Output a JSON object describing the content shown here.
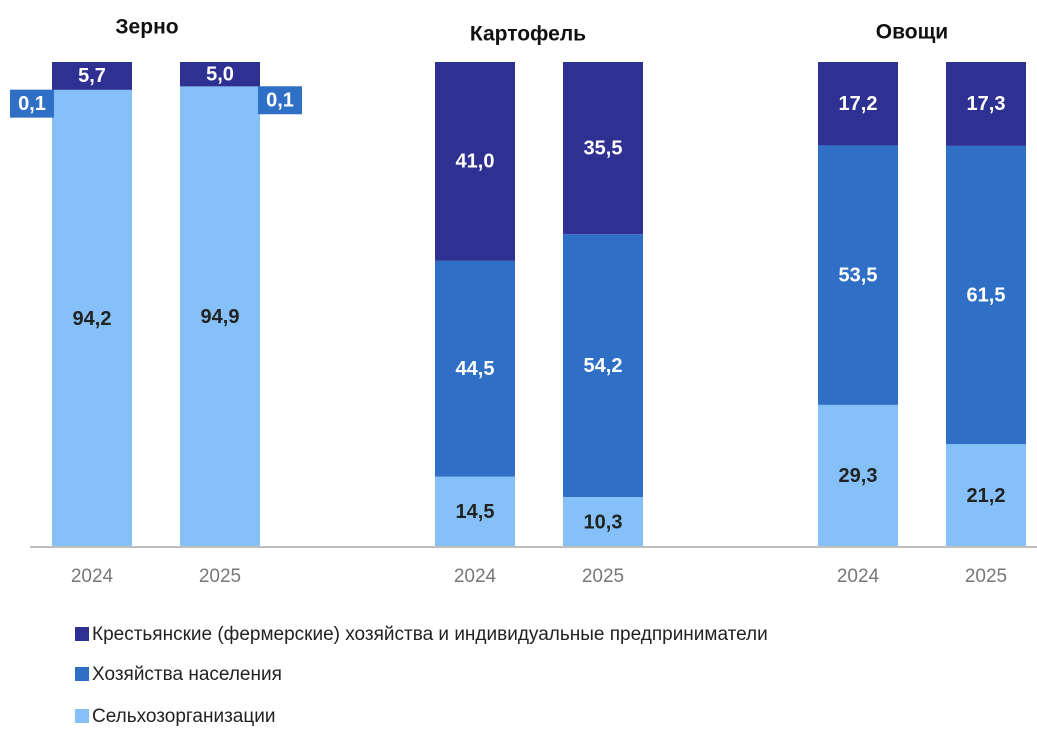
{
  "chart_data": {
    "type": "stacked_bar",
    "groups": [
      "Зерно",
      "Картофель",
      "Овощи"
    ],
    "categories": [
      "2024",
      "2025",
      "2024",
      "2025",
      "2024",
      "2025"
    ],
    "ylim": [
      0,
      100
    ],
    "series": [
      {
        "name": "Сельхозорганизации",
        "color": "#85c1f8",
        "values": [
          94.2,
          94.9,
          14.5,
          10.3,
          29.3,
          21.2
        ],
        "value_labels": [
          "94,2",
          "94,9",
          "14,5",
          "10,3",
          "29,3",
          "21,2"
        ]
      },
      {
        "name": "Хозяйства населения",
        "color": "#2f70c6",
        "values": [
          0.1,
          0.1,
          44.5,
          54.2,
          53.5,
          61.5
        ],
        "value_labels": [
          "0,1",
          "0,1",
          "44,5",
          "54,2",
          "53,5",
          "61,5"
        ]
      },
      {
        "name": "Крестьянские (фермерские) хозяйства и индивидуальные предприниматели",
        "color": "#2e3192",
        "values": [
          5.7,
          5.0,
          41.0,
          35.5,
          17.2,
          17.3
        ],
        "value_labels": [
          "5,7",
          "5,0",
          "41,0",
          "35,5",
          "17,2",
          "17,3"
        ]
      }
    ]
  }
}
